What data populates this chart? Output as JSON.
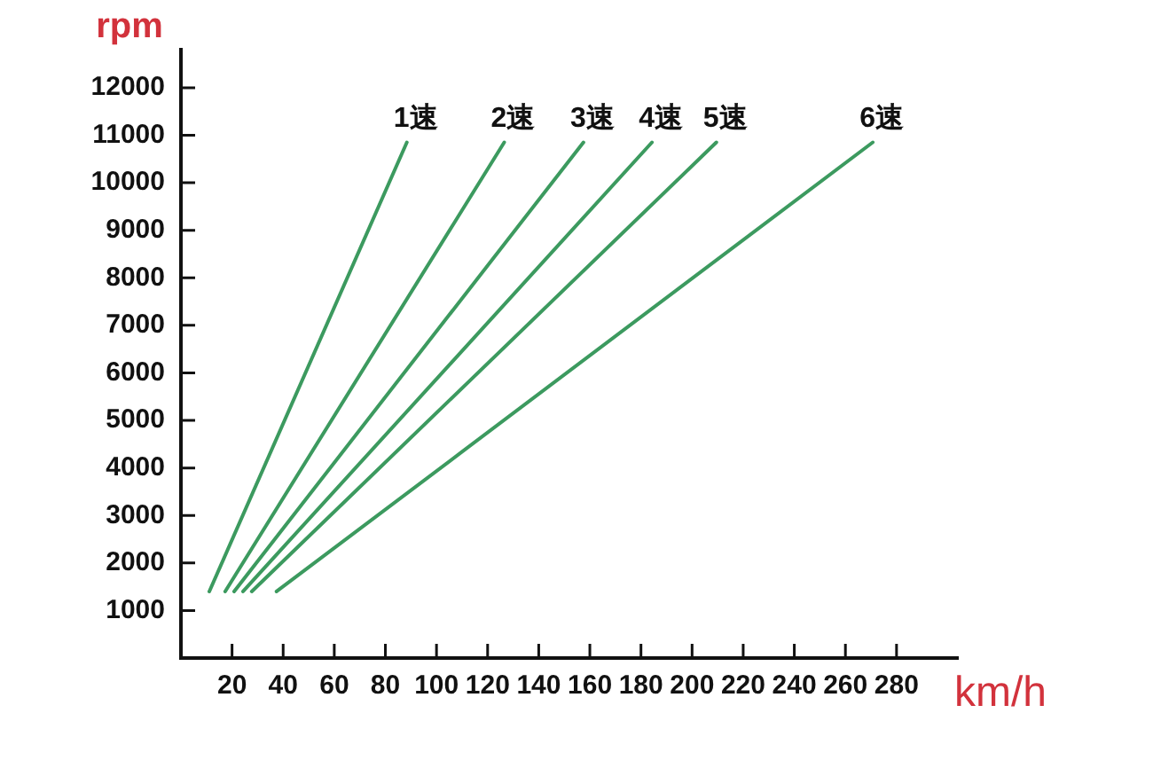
{
  "chart_data": {
    "type": "line",
    "xlabel": "km/h",
    "ylabel": "rpm",
    "xlim": [
      0,
      304
    ],
    "ylim": [
      0,
      12800
    ],
    "xticks": [
      20,
      40,
      60,
      80,
      100,
      120,
      140,
      160,
      180,
      200,
      220,
      240,
      260,
      280
    ],
    "yticks": [
      1000,
      2000,
      3000,
      4000,
      5000,
      6000,
      7000,
      8000,
      9000,
      10000,
      11000,
      12000
    ],
    "grid": false,
    "legend": false,
    "marker": "none",
    "line_style": "solid",
    "series": [
      {
        "name": "1速",
        "color": "#3c9a5f",
        "x": [
          11.1,
          88.4
        ],
        "values": [
          1400,
          10850
        ]
      },
      {
        "name": "2速",
        "color": "#3c9a5f",
        "x": [
          17.3,
          126.5
        ],
        "values": [
          1400,
          10850
        ]
      },
      {
        "name": "3速",
        "color": "#3c9a5f",
        "x": [
          20.8,
          157.5
        ],
        "values": [
          1400,
          10850
        ]
      },
      {
        "name": "4速",
        "color": "#3c9a5f",
        "x": [
          24.3,
          184.3
        ],
        "values": [
          1400,
          10850
        ]
      },
      {
        "name": "5速",
        "color": "#3c9a5f",
        "x": [
          27.7,
          209.5
        ],
        "values": [
          1400,
          10850
        ]
      },
      {
        "name": "6速",
        "color": "#3c9a5f",
        "x": [
          37.4,
          270.7
        ],
        "values": [
          1400,
          10850
        ]
      }
    ]
  }
}
